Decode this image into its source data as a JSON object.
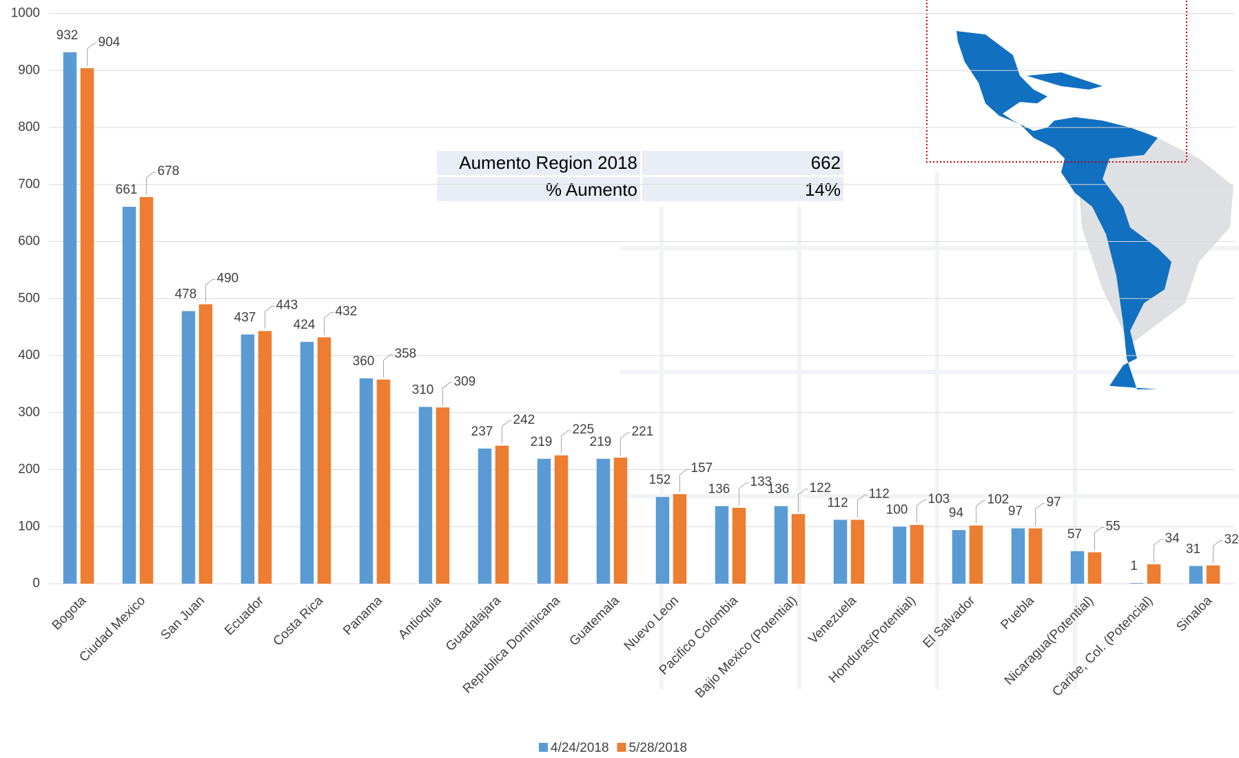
{
  "chart_data": {
    "type": "bar",
    "categories": [
      "Bogota",
      "Ciudad Mexico",
      "San Juan",
      "Ecuador",
      "Costa Rica",
      "Panama",
      "Antioquia",
      "Guadalajara",
      "Republica Dominicana",
      "Guatemala",
      "Nuevo Leon",
      "Pacifico Colombia",
      "Bajio Mexico (Potential)",
      "Venezuela",
      "Honduras(Potential)",
      "El Salvador",
      "Puebla",
      "Nicaragua(Potential)",
      "Caribe, Col. (Potencial)",
      "Sinaloa"
    ],
    "series": [
      {
        "name": "4/24/2018",
        "color": "#5b9bd5",
        "values": [
          932,
          661,
          478,
          437,
          424,
          360,
          310,
          237,
          219,
          219,
          152,
          136,
          136,
          112,
          100,
          94,
          97,
          57,
          1,
          31
        ]
      },
      {
        "name": "5/28/2018",
        "color": "#ed7d31",
        "values": [
          904,
          678,
          490,
          443,
          432,
          358,
          309,
          242,
          225,
          221,
          157,
          133,
          122,
          112,
          103,
          102,
          97,
          55,
          34,
          32
        ]
      }
    ],
    "ylim": [
      0,
      1000
    ],
    "yticks": [
      0,
      100,
      200,
      300,
      400,
      500,
      600,
      700,
      800,
      900,
      1000
    ],
    "grid": true,
    "legend": "bottom"
  },
  "summary_table": {
    "rows": [
      [
        "Aumento Region 2018",
        662
      ],
      [
        "% Aumento",
        "14%"
      ]
    ]
  }
}
